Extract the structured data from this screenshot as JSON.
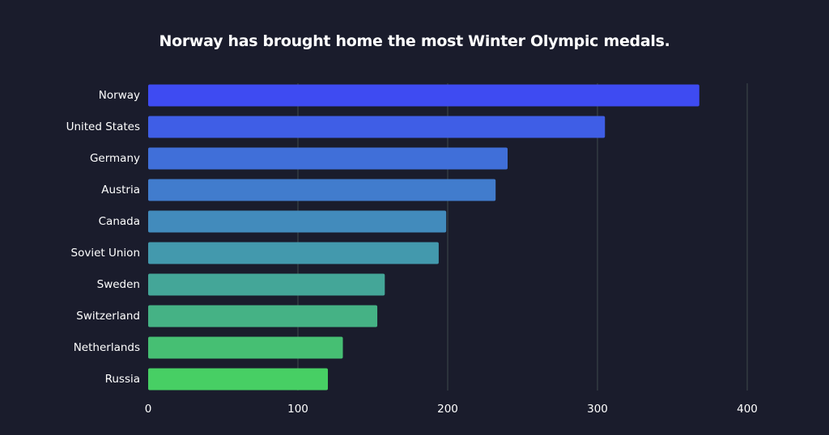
{
  "chart_data": {
    "type": "bar",
    "orientation": "horizontal",
    "title": "Norway has brought home the most Winter Olympic medals.",
    "xlabel": "",
    "ylabel": "",
    "categories": [
      "Norway",
      "United States",
      "Germany",
      "Austria",
      "Canada",
      "Soviet Union",
      "Sweden",
      "Switzerland",
      "Netherlands",
      "Russia"
    ],
    "values": [
      368,
      305,
      240,
      232,
      199,
      194,
      158,
      153,
      130,
      120
    ],
    "xlim": [
      0,
      400
    ],
    "xticks": [
      0,
      100,
      200,
      300,
      400
    ],
    "xtick_labels": [
      "0",
      "100",
      "200",
      "300",
      "400"
    ],
    "grid": "vertical",
    "legend": "none",
    "colors": [
      "#3e4bf2",
      "#3f5ee6",
      "#406fd9",
      "#417ccd",
      "#428bbc",
      "#4399ad",
      "#44a698",
      "#45b285",
      "#46bf73",
      "#47cf64"
    ],
    "background": "#1a1c2c",
    "gridline_color": "#3f4a4d"
  }
}
